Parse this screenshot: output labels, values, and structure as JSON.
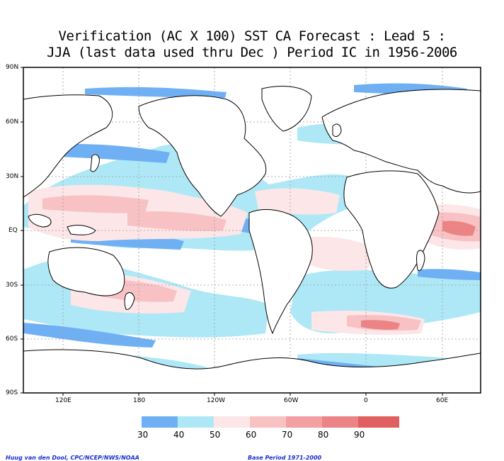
{
  "title": {
    "line1": "Verification (AC X 100) SST CA Forecast : Lead 5 :",
    "line2": "JJA (last data used thru Dec ) Period IC in 1956-2006"
  },
  "lat_labels": [
    "90N",
    "60N",
    "30N",
    "EQ",
    "30S",
    "60S",
    "90S"
  ],
  "lon_labels": [
    "120E",
    "180",
    "120W",
    "60W",
    "0",
    "60E"
  ],
  "legend": {
    "labels": [
      "30",
      "40",
      "50",
      "60",
      "70",
      "80",
      "90"
    ],
    "colors": [
      "#6fb0f5",
      "#aee8f6",
      "#fde6e8",
      "#f8c2c4",
      "#f2a0a2",
      "#ec8384",
      "#e0605f"
    ]
  },
  "footer": {
    "left": "Huug van den Dool, CPC/NCEP/NWS/NOAA",
    "right": "Base Period 1971-2000"
  },
  "colors": {
    "frame": "#000000",
    "grid": "#999999",
    "land_outline": "#000000",
    "footer_text": "#1a2fd6"
  }
}
